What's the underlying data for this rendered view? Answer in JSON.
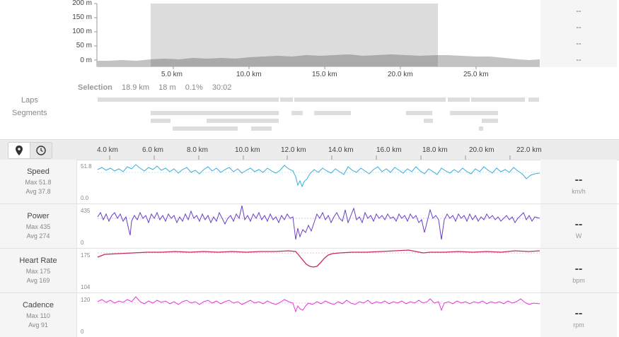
{
  "elevation": {
    "y_ticks": [
      "200 m",
      "150 m",
      "100 m",
      "50 m",
      "0 m"
    ],
    "x_ticks": [
      "5.0 km",
      "10.0 km",
      "15.0 km",
      "20.0 km",
      "25.0 km"
    ],
    "right_values": [
      "--",
      "--",
      "--",
      "--"
    ]
  },
  "selection": {
    "label": "Selection",
    "distance": "18.9 km",
    "elevation": "18 m",
    "grade": "0.1%",
    "time": "30:02"
  },
  "laps_label": "Laps",
  "segments_label": "Segments",
  "toolbar": {
    "map_icon": "map-pin-icon",
    "clock_icon": "clock-icon",
    "x_ticks": [
      "4.0 km",
      "6.0 km",
      "8.0 km",
      "10.0 km",
      "12.0 km",
      "14.0 km",
      "16.0 km",
      "18.0 km",
      "20.0 km",
      "22.0 km"
    ]
  },
  "metrics": [
    {
      "title": "Speed",
      "max": "Max 51.8",
      "avg": "Avg 37.8",
      "ytop": "51.8",
      "ybot": "0.0",
      "value": "--",
      "unit": "km/h",
      "color": "#3aaed8"
    },
    {
      "title": "Power",
      "max": "Max 435",
      "avg": "Avg 274",
      "ytop": "435",
      "ybot": "0",
      "value": "--",
      "unit": "W",
      "color": "#6a3fc4"
    },
    {
      "title": "Heart Rate",
      "max": "Max 175",
      "avg": "Avg 169",
      "ytop": "175",
      "ybot": "104",
      "value": "--",
      "unit": "bpm",
      "color": "#c8285a"
    },
    {
      "title": "Cadence",
      "max": "Max 110",
      "avg": "Avg 91",
      "ytop": "120",
      "ybot": "0",
      "value": "--",
      "unit": "rpm",
      "color": "#e23ad8"
    }
  ]
}
